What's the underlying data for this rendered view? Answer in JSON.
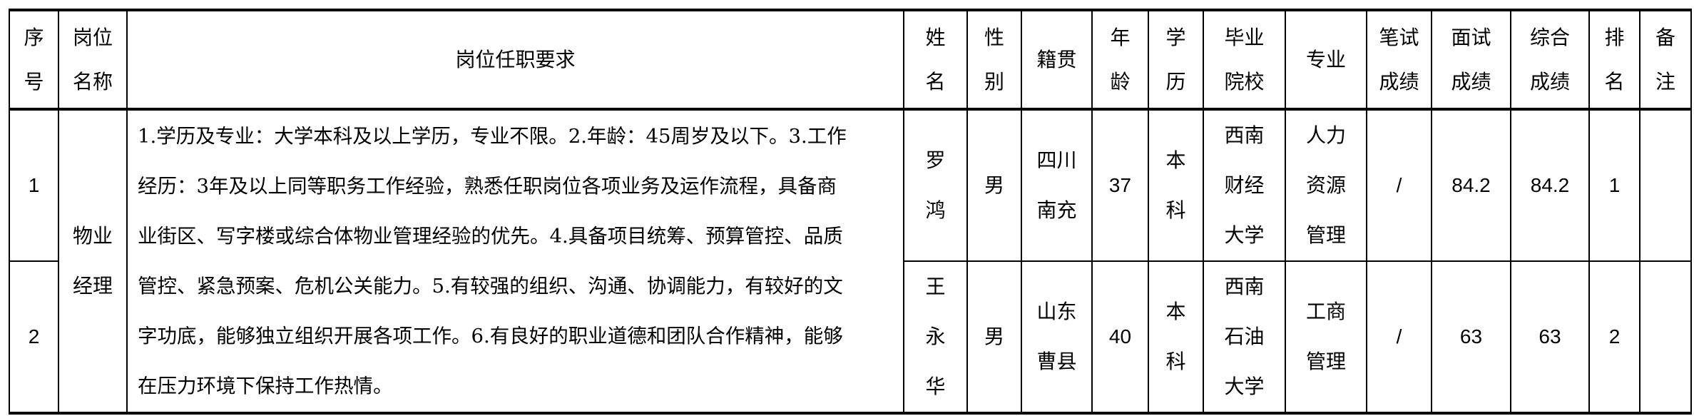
{
  "headers": {
    "seq": [
      "序",
      "号"
    ],
    "position": [
      "岗位",
      "名称"
    ],
    "requirements": "岗位任职要求",
    "name": [
      "姓",
      "名"
    ],
    "gender": [
      "性",
      "别"
    ],
    "origin": "籍贯",
    "age": [
      "年",
      "龄"
    ],
    "education": [
      "学",
      "历"
    ],
    "school": [
      "毕业",
      "院校"
    ],
    "major": "专业",
    "written": [
      "笔试",
      "成绩"
    ],
    "interview": [
      "面试",
      "成绩"
    ],
    "total": [
      "综合",
      "成绩"
    ],
    "rank": [
      "排",
      "名"
    ],
    "remarks": [
      "备",
      "注"
    ]
  },
  "position_name": [
    "物业",
    "经理"
  ],
  "requirements_lines": [
    "1.学历及专业：大学本科及以上学历，专业不限。2.年龄：45周岁及以下。3.工作",
    "经历：3年及以上同等职务工作经验，熟悉任职岗位各项业务及运作流程，具备商",
    "业街区、写字楼或综合体物业管理经验的优先。4.具备项目统筹、预算管控、品质",
    "管控、紧急预案、危机公关能力。5.有较强的组织、沟通、协调能力，有较好的文",
    "字功底，能够独立组织开展各项工作。6.有良好的职业道德和团队合作精神，能够",
    "在压力环境下保持工作热情。"
  ],
  "rows": [
    {
      "seq": "1",
      "name": [
        "罗",
        "鸿"
      ],
      "gender": "男",
      "origin": [
        "四川",
        "南充"
      ],
      "age": "37",
      "education": [
        "本",
        "科"
      ],
      "school": [
        "西南",
        "财经",
        "大学"
      ],
      "major": [
        "人力",
        "资源",
        "管理"
      ],
      "written": "/",
      "interview": "84.2",
      "total": "84.2",
      "rank": "1",
      "remarks": ""
    },
    {
      "seq": "2",
      "name": [
        "王",
        "永",
        "华"
      ],
      "gender": "男",
      "origin": [
        "山东",
        "曹县"
      ],
      "age": "40",
      "education": [
        "本",
        "科"
      ],
      "school": [
        "西南",
        "石油",
        "大学"
      ],
      "major": [
        "工商",
        "管理"
      ],
      "written": "/",
      "interview": "63",
      "total": "63",
      "rank": "2",
      "remarks": ""
    }
  ]
}
